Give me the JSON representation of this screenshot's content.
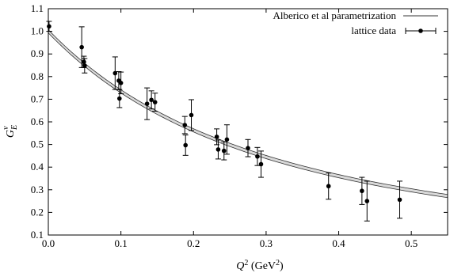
{
  "chart_data": {
    "type": "scatter",
    "xlabel_main": "Q",
    "xlabel_sup": "2",
    "xlabel_unit_pre": " (GeV",
    "xlabel_unit_sup": "2",
    "xlabel_unit_post": ")",
    "ylabel_main": "G",
    "ylabel_sub": "E",
    "ylabel_sup": "v",
    "xlim": [
      0,
      0.55
    ],
    "ylim": [
      0.1,
      1.1
    ],
    "x_ticks": [
      0,
      0.1,
      0.2,
      0.3,
      0.4,
      0.5
    ],
    "x_tick_labels": [
      "0.0",
      "0.1",
      "0.2",
      "0.3",
      "0.4",
      "0.5"
    ],
    "y_ticks": [
      0.1,
      0.2,
      0.3,
      0.4,
      0.5,
      0.6,
      0.7,
      0.8,
      0.9,
      1.0,
      1.1
    ],
    "y_tick_labels": [
      "0.1",
      "0.2",
      "0.3",
      "0.4",
      "0.5",
      "0.6",
      "0.7",
      "0.8",
      "0.9",
      "1.0",
      "1.1"
    ],
    "legend_position": "top-right",
    "series": [
      {
        "name": "Alberico et al parametrization",
        "kind": "band",
        "model": "dipole",
        "lambda_sq": 0.6,
        "band_halfwidth": 0.007
      },
      {
        "name": "lattice data",
        "kind": "points_with_errors",
        "points": [
          {
            "x": 0.001,
            "y": 1.022,
            "err": 0.022
          },
          {
            "x": 0.046,
            "y": 0.93,
            "err": 0.09
          },
          {
            "x": 0.049,
            "y": 0.865,
            "err": 0.025
          },
          {
            "x": 0.05,
            "y": 0.848,
            "err": 0.032
          },
          {
            "x": 0.092,
            "y": 0.815,
            "err": 0.072
          },
          {
            "x": 0.097,
            "y": 0.782,
            "err": 0.04
          },
          {
            "x": 0.098,
            "y": 0.703,
            "err": 0.04
          },
          {
            "x": 0.1,
            "y": 0.772,
            "err": 0.048
          },
          {
            "x": 0.136,
            "y": 0.68,
            "err": 0.07
          },
          {
            "x": 0.142,
            "y": 0.697,
            "err": 0.04
          },
          {
            "x": 0.147,
            "y": 0.687,
            "err": 0.04
          },
          {
            "x": 0.188,
            "y": 0.586,
            "err": 0.038
          },
          {
            "x": 0.189,
            "y": 0.497,
            "err": 0.045
          },
          {
            "x": 0.197,
            "y": 0.63,
            "err": 0.068
          },
          {
            "x": 0.232,
            "y": 0.534,
            "err": 0.035
          },
          {
            "x": 0.234,
            "y": 0.478,
            "err": 0.042
          },
          {
            "x": 0.242,
            "y": 0.472,
            "err": 0.04
          },
          {
            "x": 0.246,
            "y": 0.522,
            "err": 0.065
          },
          {
            "x": 0.275,
            "y": 0.484,
            "err": 0.038
          },
          {
            "x": 0.288,
            "y": 0.447,
            "err": 0.04
          },
          {
            "x": 0.293,
            "y": 0.413,
            "err": 0.058
          },
          {
            "x": 0.386,
            "y": 0.316,
            "err": 0.058
          },
          {
            "x": 0.432,
            "y": 0.295,
            "err": 0.06
          },
          {
            "x": 0.439,
            "y": 0.25,
            "err": 0.088
          },
          {
            "x": 0.484,
            "y": 0.256,
            "err": 0.082
          }
        ]
      }
    ]
  }
}
